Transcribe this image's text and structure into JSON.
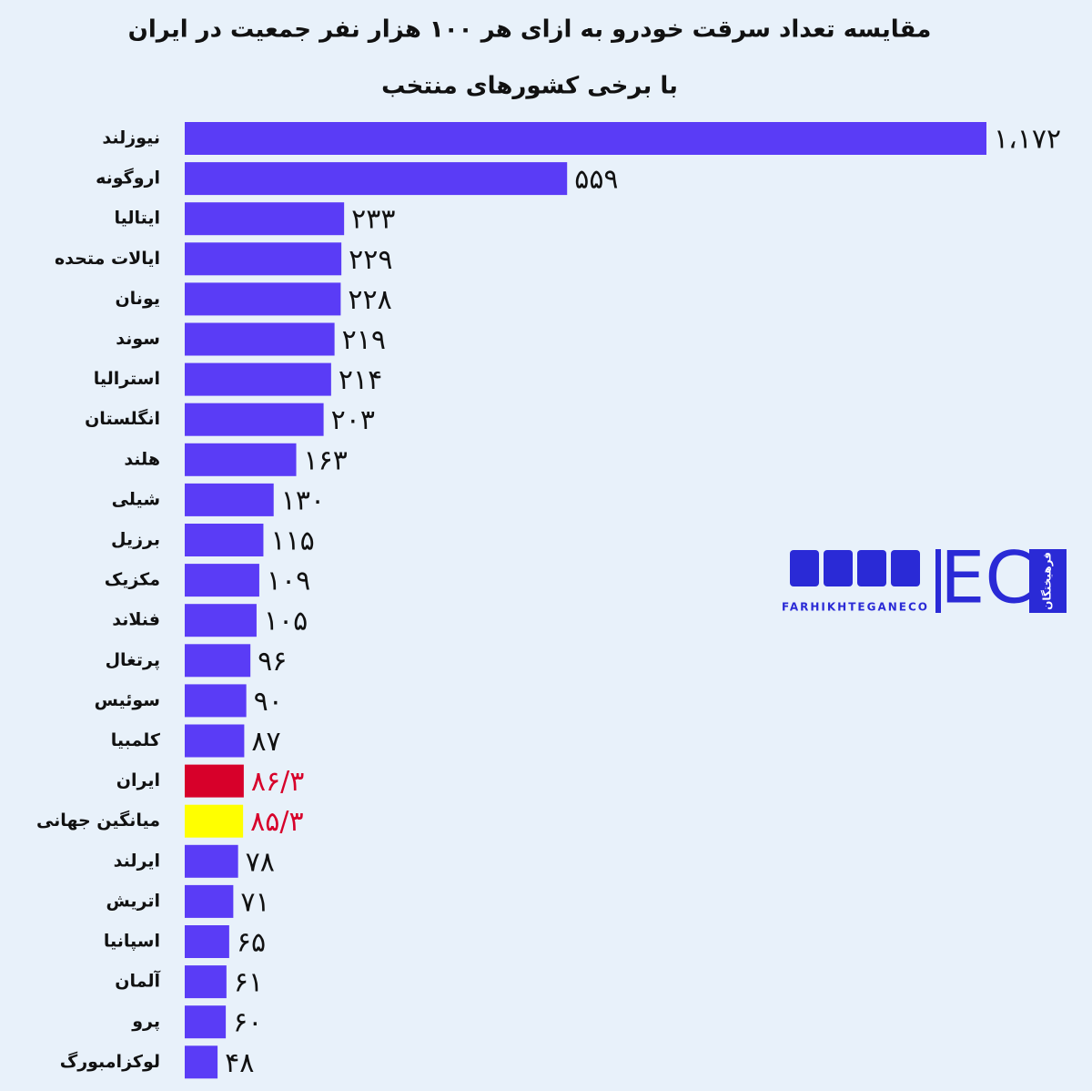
{
  "chart_data": {
    "type": "bar",
    "orientation": "horizontal",
    "title": "مقایسه تعداد سرقت خودرو به ازای هر ۱۰۰ هزار نفر جمعیت در ایران",
    "subtitle": "با برخی کشورهای منتخب",
    "categories": [
      "نیوزلند",
      "اروگونه",
      "ایتالیا",
      "ایالات متحده",
      "یونان",
      "سوند",
      "استرالیا",
      "انگلستان",
      "هلند",
      "شیلی",
      "برزیل",
      "مکزیک",
      "فنلاند",
      "پرتغال",
      "سوئیس",
      "کلمبیا",
      "ایران",
      "میانگین جهانی",
      "ایرلند",
      "اتریش",
      "اسپانیا",
      "آلمان",
      "پرو",
      "لوکزامبورگ"
    ],
    "values": [
      1172,
      559,
      233,
      229,
      228,
      219,
      214,
      203,
      163,
      130,
      115,
      109,
      105,
      96,
      90,
      87,
      86.3,
      85.3,
      78,
      71,
      65,
      61,
      60,
      48
    ],
    "value_labels": [
      "۱،۱۷۲",
      "۵۵۹",
      "۲۳۳",
      "۲۲۹",
      "۲۲۸",
      "۲۱۹",
      "۲۱۴",
      "۲۰۳",
      "۱۶۳",
      "۱۳۰",
      "۱۱۵",
      "۱۰۹",
      "۱۰۵",
      "۹۶",
      "۹۰",
      "۸۷",
      "۸۶/۳",
      "۸۵/۳",
      "۷۸",
      "۷۱",
      "۶۵",
      "۶۱",
      "۶۰",
      "۴۸"
    ],
    "colors": [
      "#5a3cf6",
      "#5a3cf6",
      "#5a3cf6",
      "#5a3cf6",
      "#5a3cf6",
      "#5a3cf6",
      "#5a3cf6",
      "#5a3cf6",
      "#5a3cf6",
      "#5a3cf6",
      "#5a3cf6",
      "#5a3cf6",
      "#5a3cf6",
      "#5a3cf6",
      "#5a3cf6",
      "#5a3cf6",
      "#d7002a",
      "#ffff00",
      "#5a3cf6",
      "#5a3cf6",
      "#5a3cf6",
      "#5a3cf6",
      "#5a3cf6",
      "#5a3cf6"
    ],
    "label_colors": [
      "#111111",
      "#111111",
      "#111111",
      "#111111",
      "#111111",
      "#111111",
      "#111111",
      "#111111",
      "#111111",
      "#111111",
      "#111111",
      "#111111",
      "#111111",
      "#111111",
      "#111111",
      "#111111",
      "#d7002a",
      "#d7002a",
      "#111111",
      "#111111",
      "#111111",
      "#111111",
      "#111111",
      "#111111"
    ]
  },
  "logo": {
    "handle": "FARHIKHTEGANECO",
    "mark": "EC",
    "name": "فرهیختگان"
  }
}
